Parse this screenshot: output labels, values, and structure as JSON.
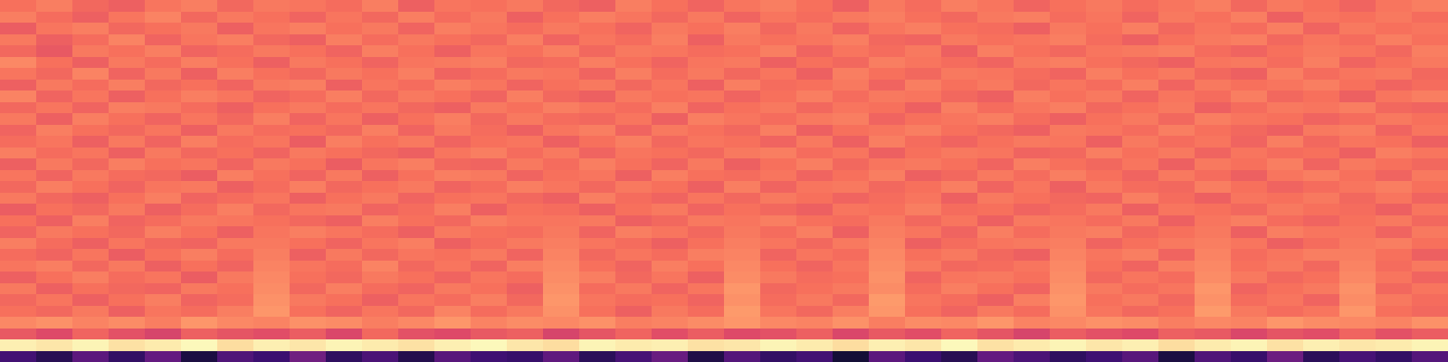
{
  "chart_data": {
    "type": "heatmap",
    "tick_labels": false,
    "zlim": [
      0,
      100
    ],
    "cells": [
      [
        22,
        15,
        28,
        18,
        30,
        12,
        25,
        20,
        33,
        17,
        24,
        14,
        27,
        21,
        19,
        29,
        16,
        23,
        31,
        13,
        26,
        18,
        22,
        10,
        28,
        20,
        15,
        30,
        24,
        17,
        21,
        27,
        12,
        25,
        19,
        32,
        16,
        23,
        18,
        26
      ],
      [
        97,
        95,
        98,
        94,
        96,
        99,
        93,
        97,
        95,
        98,
        96,
        94,
        97,
        99,
        95,
        93,
        98,
        96,
        97,
        94,
        95,
        98,
        96,
        93,
        97,
        95,
        99,
        94,
        96,
        98,
        95,
        97,
        93,
        96,
        98,
        94,
        97,
        95,
        96,
        98
      ],
      [
        64,
        60,
        67,
        62,
        58,
        66,
        63,
        61,
        65,
        59,
        68,
        62,
        60,
        64,
        66,
        58,
        63,
        67,
        61,
        65,
        60,
        62,
        66,
        59,
        64,
        61,
        67,
        63,
        58,
        65,
        62,
        60,
        66,
        64,
        59,
        63,
        61,
        67,
        62,
        65
      ],
      [
        75,
        77,
        74,
        76,
        73,
        78,
        75,
        74,
        77,
        76,
        73,
        75,
        78,
        74,
        76,
        75,
        77,
        73,
        74,
        76,
        78,
        75,
        74,
        77,
        73,
        76,
        75,
        78,
        74,
        75,
        77,
        76,
        73,
        75,
        74,
        78,
        76,
        75,
        74,
        77
      ],
      [
        70,
        68,
        72,
        66,
        71,
        69,
        73,
        78,
        70,
        67,
        71,
        68,
        74,
        69,
        72,
        77,
        70,
        66,
        72,
        69,
        79,
        71,
        68,
        73,
        78,
        70,
        67,
        72,
        69,
        77,
        71,
        68,
        70,
        79,
        72,
        69,
        71,
        78,
        70,
        68
      ],
      [
        68,
        71,
        66,
        70,
        73,
        67,
        69,
        77,
        72,
        70,
        66,
        71,
        69,
        73,
        68,
        78,
        71,
        69,
        70,
        67,
        77,
        69,
        72,
        68,
        79,
        71,
        69,
        66,
        73,
        78,
        70,
        72,
        68,
        77,
        69,
        71,
        67,
        76,
        72,
        69
      ],
      [
        72,
        66,
        70,
        68,
        67,
        72,
        70,
        76,
        68,
        73,
        69,
        67,
        72,
        70,
        66,
        77,
        69,
        72,
        67,
        71,
        78,
        68,
        70,
        72,
        76,
        69,
        73,
        70,
        67,
        77,
        72,
        69,
        71,
        78,
        67,
        70,
        72,
        77,
        68,
        71
      ],
      [
        66,
        70,
        73,
        69,
        71,
        65,
        72,
        75,
        70,
        68,
        72,
        70,
        67,
        71,
        69,
        76,
        73,
        68,
        71,
        66,
        76,
        72,
        69,
        70,
        77,
        67,
        71,
        72,
        70,
        76,
        68,
        71,
        69,
        76,
        72,
        68,
        70,
        75,
        71,
        67
      ],
      [
        71,
        73,
        68,
        72,
        66,
        70,
        67,
        74,
        71,
        69,
        74,
        68,
        71,
        67,
        73,
        75,
        70,
        67,
        73,
        70,
        75,
        70,
        67,
        71,
        76,
        72,
        68,
        69,
        71,
        75,
        70,
        67,
        73,
        75,
        70,
        72,
        68,
        74,
        69,
        72
      ],
      [
        69,
        67,
        71,
        65,
        70,
        73,
        69,
        73,
        66,
        72,
        68,
        71,
        70,
        72,
        67,
        74,
        68,
        71,
        69,
        73,
        74,
        67,
        71,
        69,
        75,
        70,
        72,
        68,
        66,
        74,
        71,
        73,
        67,
        74,
        69,
        71,
        73,
        73,
        70,
        66
      ],
      [
        73,
        69,
        66,
        71,
        68,
        67,
        72,
        72,
        70,
        67,
        71,
        73,
        66,
        69,
        72,
        73,
        71,
        69,
        66,
        70,
        73,
        71,
        68,
        72,
        74,
        66,
        69,
        71,
        72,
        73,
        67,
        70,
        72,
        73,
        71,
        66,
        69,
        72,
        73,
        70
      ],
      [
        67,
        72,
        70,
        68,
        73,
        70,
        66,
        71,
        73,
        71,
        69,
        66,
        72,
        70,
        69,
        72,
        67,
        73,
        71,
        68,
        72,
        69,
        73,
        66,
        73,
        71,
        67,
        73,
        69,
        72,
        73,
        68,
        70,
        72,
        66,
        73,
        71,
        71,
        67,
        72
      ],
      [
        70,
        66,
        73,
        67,
        69,
        72,
        71,
        70,
        68,
        66,
        73,
        70,
        68,
        73,
        71,
        71,
        72,
        66,
        68,
        72,
        71,
        73,
        70,
        69,
        72,
        68,
        71,
        66,
        72,
        71,
        69,
        72,
        66,
        71,
        73,
        69,
        67,
        70,
        72,
        68
      ],
      [
        65,
        70,
        68,
        72,
        66,
        69,
        73,
        68,
        71,
        72,
        67,
        69,
        73,
        66,
        70,
        69,
        66,
        70,
        72,
        67,
        70,
        68,
        66,
        71,
        70,
        73,
        69,
        70,
        67,
        69,
        72,
        66,
        71,
        70,
        68,
        72,
        70,
        69,
        66,
        71
      ],
      [
        72,
        68,
        66,
        70,
        73,
        67,
        69,
        71,
        66,
        70,
        72,
        67,
        70,
        71,
        68,
        66,
        73,
        69,
        67,
        71,
        68,
        72,
        70,
        67,
        69,
        71,
        66,
        72,
        70,
        68,
        67,
        73,
        69,
        66,
        71,
        70,
        72,
        68,
        71,
        67
      ],
      [
        68,
        73,
        70,
        67,
        71,
        72,
        66,
        69,
        73,
        68,
        70,
        72,
        67,
        69,
        73,
        71,
        68,
        72,
        70,
        66,
        73,
        67,
        71,
        72,
        68,
        70,
        73,
        67,
        71,
        66,
        72,
        69,
        68,
        73,
        70,
        67,
        69,
        71,
        73,
        70
      ],
      [
        71,
        67,
        72,
        69,
        68,
        65,
        73,
        70,
        67,
        72,
        66,
        70,
        73,
        72,
        67,
        70,
        71,
        66,
        73,
        70,
        69,
        71,
        67,
        70,
        73,
        66,
        68,
        72,
        69,
        73,
        70,
        67,
        72,
        69,
        66,
        71,
        73,
        70,
        67,
        72
      ],
      [
        66,
        72,
        68,
        73,
        70,
        71,
        67,
        72,
        70,
        65,
        71,
        73,
        68,
        67,
        72,
        69,
        73,
        70,
        67,
        72,
        66,
        70,
        73,
        68,
        71,
        72,
        70,
        67,
        73,
        70,
        68,
        71,
        66,
        72,
        70,
        73,
        67,
        72,
        70,
        68
      ],
      [
        73,
        69,
        71,
        66,
        72,
        68,
        70,
        67,
        72,
        70,
        68,
        66,
        71,
        73,
        69,
        72,
        67,
        71,
        70,
        68,
        72,
        73,
        69,
        71,
        66,
        70,
        72,
        71,
        67,
        68,
        73,
        70,
        72,
        67,
        71,
        69,
        70,
        66,
        73,
        71
      ],
      [
        69,
        71,
        66,
        72,
        67,
        73,
        69,
        71,
        65,
        73,
        70,
        72,
        67,
        70,
        71,
        66,
        70,
        73,
        68,
        71,
        70,
        67,
        72,
        66,
        73,
        69,
        67,
        70,
        72,
        71,
        66,
        72,
        69,
        71,
        67,
        73,
        68,
        71,
        70,
        66
      ],
      [
        67,
        73,
        70,
        68,
        71,
        66,
        72,
        69,
        70,
        68,
        73,
        67,
        72,
        69,
        66,
        71,
        73,
        67,
        72,
        70,
        68,
        73,
        66,
        70,
        71,
        73,
        70,
        68,
        66,
        72,
        71,
        69,
        73,
        70,
        68,
        66,
        72,
        73,
        67,
        71
      ],
      [
        72,
        66,
        73,
        70,
        67,
        71,
        68,
        73,
        67,
        71,
        66,
        70,
        73,
        68,
        72,
        69,
        68,
        71,
        66,
        73,
        71,
        69,
        72,
        73,
        67,
        70,
        71,
        73,
        69,
        66,
        70,
        72,
        68,
        73,
        71,
        70,
        67,
        69,
        72,
        70
      ],
      [
        68,
        71,
        67,
        73,
        72,
        69,
        66,
        70,
        72,
        69,
        71,
        68,
        66,
        72,
        70,
        73,
        71,
        69,
        73,
        67,
        70,
        72,
        68,
        71,
        70,
        66,
        73,
        69,
        71,
        73,
        68,
        70,
        72,
        66,
        69,
        72,
        71,
        73,
        68,
        67
      ],
      [
        74,
        67,
        71,
        66,
        70,
        73,
        71,
        67,
        69,
        73,
        68,
        72,
        70,
        67,
        73,
        68,
        66,
        72,
        70,
        71,
        67,
        70,
        73,
        69,
        72,
        71,
        68,
        66,
        73,
        70,
        72,
        67,
        71,
        69,
        73,
        68,
        70,
        66,
        71,
        73
      ],
      [
        66,
        72,
        69,
        73,
        68,
        70,
        67,
        72,
        73,
        66,
        71,
        69,
        73,
        71,
        67,
        70,
        72,
        68,
        71,
        66,
        73,
        69,
        70,
        72,
        67,
        73,
        70,
        72,
        68,
        71,
        69,
        73,
        67,
        72,
        70,
        71,
        73,
        70,
        67,
        69
      ],
      [
        71,
        68,
        74,
        67,
        72,
        66,
        73,
        70,
        68,
        72,
        70,
        73,
        67,
        69,
        72,
        71,
        67,
        73,
        69,
        72,
        68,
        71,
        66,
        73,
        70,
        68,
        72,
        71,
        69,
        67,
        73,
        70,
        72,
        68,
        66,
        73,
        69,
        71,
        72,
        68
      ],
      [
        75,
        70,
        66,
        72,
        69,
        73,
        70,
        66,
        72,
        70,
        67,
        71,
        72,
        73,
        68,
        69,
        73,
        70,
        67,
        71,
        72,
        66,
        70,
        68,
        73,
        71,
        69,
        67,
        72,
        73,
        70,
        68,
        66,
        71,
        72,
        69,
        73,
        67,
        70,
        72
      ],
      [
        68,
        64,
        72,
        70,
        73,
        67,
        69,
        72,
        70,
        67,
        73,
        70,
        66,
        71,
        70,
        73,
        68,
        72,
        71,
        69,
        70,
        73,
        67,
        71,
        69,
        72,
        66,
        73,
        70,
        68,
        71,
        72,
        73,
        69,
        67,
        70,
        72,
        71,
        68,
        73
      ],
      [
        72,
        66,
        69,
        74,
        67,
        71,
        73,
        68,
        66,
        73,
        69,
        72,
        70,
        68,
        73,
        67,
        71,
        69,
        73,
        66,
        72,
        70,
        71,
        73,
        68,
        67,
        72,
        70,
        71,
        73,
        69,
        66,
        70,
        72,
        73,
        68,
        71,
        69,
        73,
        70
      ],
      [
        65,
        71,
        73,
        68,
        70,
        72,
        66,
        71,
        73,
        70,
        72,
        67,
        73,
        71,
        69,
        72,
        70,
        67,
        72,
        70,
        73,
        68,
        72,
        67,
        71,
        73,
        70,
        69,
        66,
        72,
        70,
        73,
        68,
        71,
        69,
        73,
        67,
        72,
        70,
        71
      ],
      [
        73,
        69,
        66,
        71,
        74,
        68,
        72,
        70,
        67,
        71,
        68,
        73,
        69,
        72,
        66,
        70,
        73,
        71,
        68,
        72,
        67,
        71,
        69,
        72,
        73,
        70,
        68,
        72,
        73,
        69,
        71,
        67,
        72,
        70,
        73,
        66,
        71,
        70,
        72,
        69
      ],
      [
        70,
        73,
        68,
        66,
        71,
        73,
        68,
        72,
        71,
        69,
        73,
        66,
        71,
        70,
        72,
        68,
        66,
        73,
        70,
        67,
        71,
        73,
        70,
        66,
        72,
        69,
        73,
        71,
        67,
        70,
        72,
        69,
        71,
        73,
        68,
        72,
        70,
        67,
        71,
        73
      ]
    ]
  }
}
